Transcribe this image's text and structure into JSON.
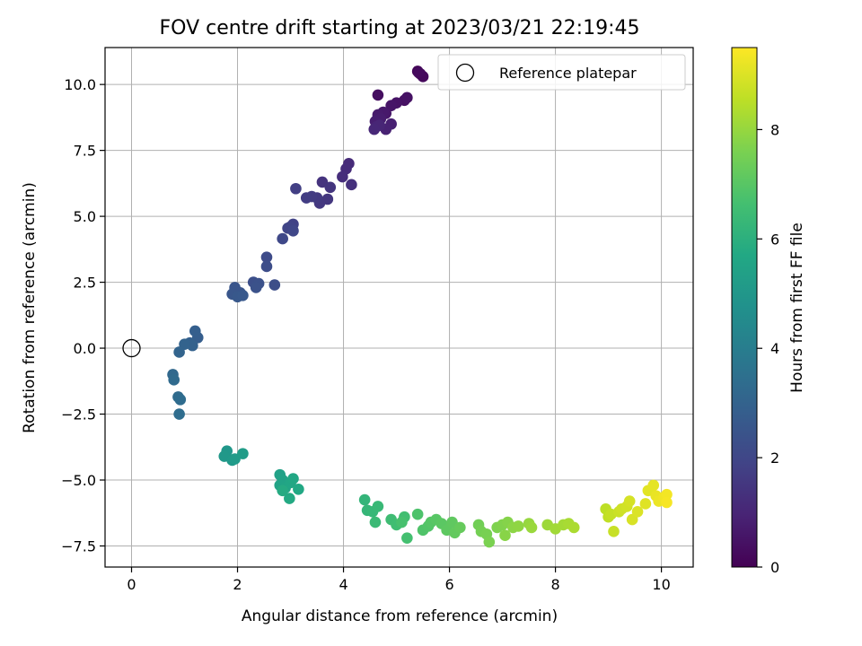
{
  "chart_data": {
    "type": "scatter",
    "title": "FOV centre drift starting at 2023/03/21 22:19:45",
    "xlabel": "Angular distance from reference (arcmin)",
    "ylabel": "Rotation from reference (arcmin)",
    "xlim": [
      -0.5,
      10.6
    ],
    "ylim": [
      -8.3,
      11.4
    ],
    "xticks": [
      0,
      2,
      4,
      6,
      8,
      10
    ],
    "xtick_labels": [
      "0",
      "2",
      "4",
      "6",
      "8",
      "10"
    ],
    "yticks": [
      -7.5,
      -5.0,
      -2.5,
      0.0,
      2.5,
      5.0,
      7.5,
      10.0
    ],
    "ytick_labels": [
      "−7.5",
      "−5.0",
      "−2.5",
      "0.0",
      "2.5",
      "5.0",
      "7.5",
      "10.0"
    ],
    "grid": true,
    "legend": {
      "position": "top-right",
      "entries": [
        "Reference platepar"
      ]
    },
    "reference": {
      "x": 0,
      "y": 0,
      "label": "Reference platepar"
    },
    "colorbar": {
      "label": "Hours from first FF file",
      "range": [
        0,
        9.5
      ],
      "ticks": [
        0,
        2,
        4,
        6,
        8
      ],
      "tick_labels": [
        "0",
        "2",
        "4",
        "6",
        "8"
      ],
      "colormap": "viridis"
    },
    "points": [
      [
        5.4,
        10.5,
        0.1
      ],
      [
        5.45,
        10.4,
        0.15
      ],
      [
        5.5,
        10.3,
        0.2
      ],
      [
        5.42,
        10.45,
        0.25
      ],
      [
        4.65,
        9.6,
        0.35
      ],
      [
        5.15,
        9.4,
        0.4
      ],
      [
        5.2,
        9.5,
        0.45
      ],
      [
        5.0,
        9.3,
        0.5
      ],
      [
        4.9,
        9.2,
        0.55
      ],
      [
        4.8,
        8.9,
        0.6
      ],
      [
        4.75,
        8.95,
        0.65
      ],
      [
        4.65,
        8.85,
        0.7
      ],
      [
        4.7,
        8.7,
        0.75
      ],
      [
        4.6,
        8.6,
        0.8
      ],
      [
        4.9,
        8.5,
        0.85
      ],
      [
        4.8,
        8.3,
        0.9
      ],
      [
        4.62,
        8.4,
        0.95
      ],
      [
        4.68,
        8.45,
        1.0
      ],
      [
        4.58,
        8.3,
        1.05
      ],
      [
        4.1,
        7.0,
        1.15
      ],
      [
        4.05,
        6.8,
        1.2
      ],
      [
        3.98,
        6.5,
        1.25
      ],
      [
        4.15,
        6.2,
        1.3
      ],
      [
        3.6,
        6.3,
        1.4
      ],
      [
        3.75,
        6.1,
        1.45
      ],
      [
        3.7,
        5.65,
        1.5
      ],
      [
        3.55,
        5.5,
        1.55
      ],
      [
        3.5,
        5.7,
        1.6
      ],
      [
        3.4,
        5.75,
        1.65
      ],
      [
        3.3,
        5.7,
        1.7
      ],
      [
        3.1,
        6.05,
        1.75
      ],
      [
        3.05,
        4.7,
        1.85
      ],
      [
        3.0,
        4.6,
        1.9
      ],
      [
        2.95,
        4.55,
        1.95
      ],
      [
        3.05,
        4.45,
        2.0
      ],
      [
        2.85,
        4.15,
        2.05
      ],
      [
        2.55,
        3.45,
        2.15
      ],
      [
        2.55,
        3.1,
        2.2
      ],
      [
        2.7,
        2.4,
        2.25
      ],
      [
        2.3,
        2.5,
        2.3
      ],
      [
        2.4,
        2.45,
        2.35
      ],
      [
        2.35,
        2.3,
        2.4
      ],
      [
        2.05,
        2.1,
        2.45
      ],
      [
        1.95,
        2.3,
        2.5
      ],
      [
        1.9,
        2.05,
        2.55
      ],
      [
        2.0,
        1.95,
        2.6
      ],
      [
        2.1,
        2.0,
        2.65
      ],
      [
        1.25,
        0.4,
        2.8
      ],
      [
        1.2,
        0.65,
        2.85
      ],
      [
        1.1,
        0.2,
        2.9
      ],
      [
        1.15,
        0.1,
        2.95
      ],
      [
        1.0,
        0.15,
        3.0
      ],
      [
        0.9,
        -0.15,
        3.05
      ],
      [
        0.78,
        -1.0,
        3.2
      ],
      [
        0.8,
        -1.2,
        3.25
      ],
      [
        0.88,
        -1.85,
        3.3
      ],
      [
        0.92,
        -1.95,
        3.35
      ],
      [
        0.9,
        -2.5,
        3.4
      ],
      [
        1.8,
        -3.9,
        5.0
      ],
      [
        1.75,
        -4.1,
        5.05
      ],
      [
        1.9,
        -4.25,
        5.1
      ],
      [
        1.95,
        -4.2,
        5.15
      ],
      [
        2.1,
        -4.0,
        5.2
      ],
      [
        2.8,
        -4.8,
        5.4
      ],
      [
        2.85,
        -5.0,
        5.45
      ],
      [
        2.8,
        -5.2,
        5.5
      ],
      [
        2.9,
        -5.3,
        5.55
      ],
      [
        3.0,
        -5.1,
        5.6
      ],
      [
        3.05,
        -4.95,
        5.65
      ],
      [
        3.15,
        -5.35,
        5.7
      ],
      [
        2.98,
        -5.7,
        5.75
      ],
      [
        2.85,
        -5.4,
        5.8
      ],
      [
        4.4,
        -5.75,
        6.2
      ],
      [
        4.45,
        -6.15,
        6.25
      ],
      [
        4.55,
        -6.2,
        6.3
      ],
      [
        4.65,
        -6.0,
        6.35
      ],
      [
        4.6,
        -6.6,
        6.4
      ],
      [
        4.9,
        -6.5,
        6.5
      ],
      [
        5.0,
        -6.7,
        6.55
      ],
      [
        5.15,
        -6.4,
        6.6
      ],
      [
        5.2,
        -7.2,
        6.65
      ],
      [
        5.1,
        -6.6,
        6.7
      ],
      [
        5.4,
        -6.3,
        6.8
      ],
      [
        5.5,
        -6.9,
        6.85
      ],
      [
        5.6,
        -6.75,
        6.9
      ],
      [
        5.65,
        -6.6,
        6.95
      ],
      [
        5.75,
        -6.5,
        7.0
      ],
      [
        5.85,
        -6.65,
        7.05
      ],
      [
        5.95,
        -6.9,
        7.1
      ],
      [
        6.05,
        -6.6,
        7.15
      ],
      [
        6.1,
        -7.0,
        7.2
      ],
      [
        6.2,
        -6.8,
        7.25
      ],
      [
        6.55,
        -6.7,
        7.45
      ],
      [
        6.6,
        -6.95,
        7.5
      ],
      [
        6.7,
        -7.05,
        7.55
      ],
      [
        6.75,
        -7.35,
        7.6
      ],
      [
        6.9,
        -6.8,
        7.65
      ],
      [
        7.0,
        -6.7,
        7.7
      ],
      [
        7.1,
        -6.6,
        7.75
      ],
      [
        7.05,
        -7.1,
        7.8
      ],
      [
        7.2,
        -6.8,
        7.85
      ],
      [
        7.3,
        -6.75,
        7.9
      ],
      [
        7.5,
        -6.65,
        8.0
      ],
      [
        7.55,
        -6.8,
        8.05
      ],
      [
        7.85,
        -6.7,
        8.1
      ],
      [
        8.0,
        -6.85,
        8.15
      ],
      [
        8.15,
        -6.7,
        8.2
      ],
      [
        8.25,
        -6.65,
        8.25
      ],
      [
        8.35,
        -6.8,
        8.3
      ],
      [
        8.95,
        -6.1,
        8.55
      ],
      [
        9.0,
        -6.4,
        8.6
      ],
      [
        9.05,
        -6.3,
        8.65
      ],
      [
        9.1,
        -6.95,
        8.7
      ],
      [
        9.2,
        -6.2,
        8.75
      ],
      [
        9.25,
        -6.1,
        8.8
      ],
      [
        9.35,
        -6.0,
        8.85
      ],
      [
        9.4,
        -5.8,
        8.9
      ],
      [
        9.45,
        -6.5,
        8.95
      ],
      [
        9.55,
        -6.2,
        9.0
      ],
      [
        9.7,
        -5.9,
        9.05
      ],
      [
        9.75,
        -5.4,
        9.1
      ],
      [
        9.85,
        -5.2,
        9.15
      ],
      [
        9.9,
        -5.6,
        9.2
      ],
      [
        9.95,
        -5.8,
        9.25
      ],
      [
        10.05,
        -5.65,
        9.3
      ],
      [
        10.1,
        -5.55,
        9.35
      ],
      [
        10.1,
        -5.85,
        9.4
      ]
    ]
  }
}
